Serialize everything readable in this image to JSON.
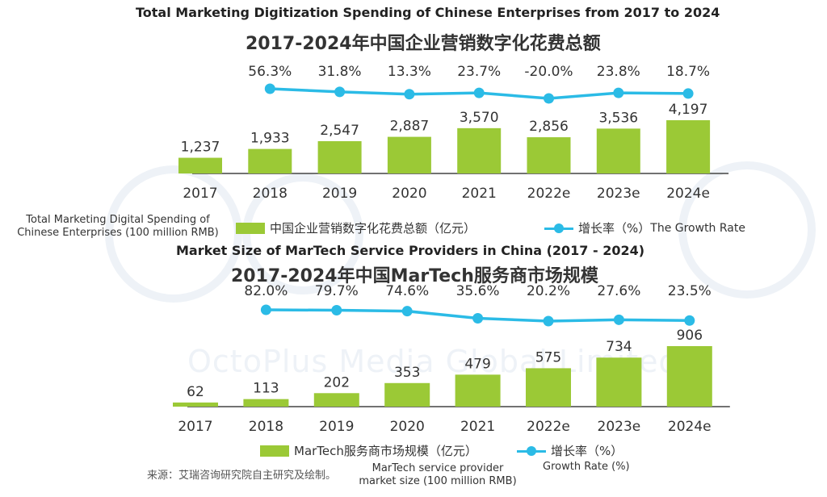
{
  "chart_data": [
    {
      "type": "bar",
      "title": "Total Marketing Digitization Spending of Chinese Enterprises from 2017 to 2024",
      "subtitle": "2017-2024年中国企业营销数字化花费总额",
      "categories": [
        "2017",
        "2018",
        "2019",
        "2020",
        "2021",
        "2022e",
        "2023e",
        "2024e"
      ],
      "series": [
        {
          "name": "中国企业营销数字化花费总额（亿元）",
          "type": "bar",
          "values": [
            1237,
            1933,
            2547,
            2887,
            3570,
            2856,
            3536,
            4197
          ]
        },
        {
          "name": "增长率（%）",
          "type": "line",
          "values": [
            null,
            56.3,
            31.8,
            13.3,
            23.7,
            -20.0,
            23.8,
            18.7
          ]
        }
      ],
      "bar_labels": [
        "1,237",
        "1,933",
        "2,547",
        "2,887",
        "3,570",
        "2,856",
        "3,536",
        "4,197"
      ],
      "rate_labels": [
        "56.3%",
        "31.8%",
        "13.3%",
        "23.7%",
        "-20.0%",
        "23.8%",
        "18.7%"
      ],
      "legend": {
        "bar": "中国企业营销数字化花费总额（亿元）",
        "line": "增长率（%）"
      },
      "legend_placement": "bottom",
      "annotations": {
        "bar_note": "Total Marketing Digital Spending of Chinese Enterprises (100 million RMB)",
        "line_note": "The Growth Rate"
      },
      "grid": false,
      "colors": {
        "bar": "#9bc936",
        "line": "#2bbbe6"
      }
    },
    {
      "type": "bar",
      "title": "Market Size of MarTech Service Providers in China (2017 -  2024)",
      "subtitle": "2017-2024年中国MarTech服务商市场规模",
      "categories": [
        "2017",
        "2018",
        "2019",
        "2020",
        "2021",
        "2022e",
        "2023e",
        "2024e"
      ],
      "series": [
        {
          "name": "MarTech服务商市场规模（亿元）",
          "type": "bar",
          "values": [
            62,
            113,
            202,
            353,
            479,
            575,
            734,
            906
          ]
        },
        {
          "name": "增长率（%）",
          "type": "line",
          "values": [
            null,
            82.0,
            79.7,
            74.6,
            35.6,
            20.2,
            27.6,
            23.5
          ]
        }
      ],
      "bar_labels": [
        "62",
        "113",
        "202",
        "353",
        "479",
        "575",
        "734",
        "906"
      ],
      "rate_labels": [
        "82.0%",
        "79.7%",
        "74.6%",
        "35.6%",
        "20.2%",
        "27.6%",
        "23.5%"
      ],
      "legend": {
        "bar": "MarTech服务商市场规模（亿元）",
        "line": "增长率（%）"
      },
      "legend_placement": "bottom",
      "annotations": {
        "bar_note": "MarTech service provider market size (100 million RMB)",
        "line_note": "Growth Rate (%)"
      },
      "grid": false,
      "colors": {
        "bar": "#9bc936",
        "line": "#2bbbe6"
      }
    }
  ],
  "watermark": "OctoPlus Media Global Limited",
  "source": "来源：艾瑞咨询研究院自主研究及绘制。"
}
